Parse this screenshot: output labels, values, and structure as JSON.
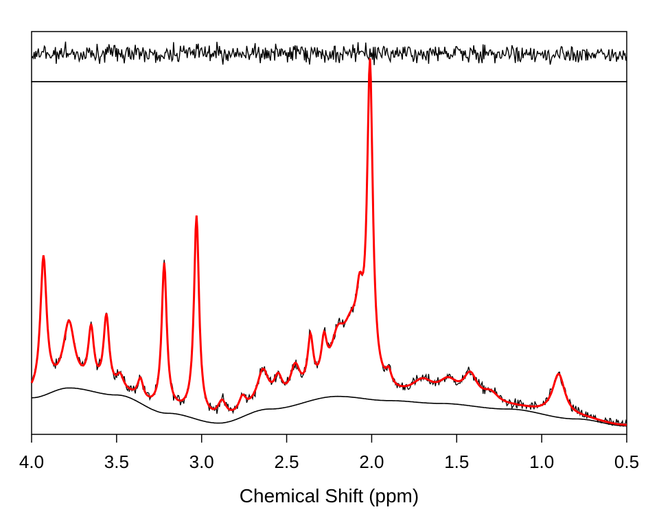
{
  "chart_data": {
    "type": "line",
    "title": "",
    "xlabel": "Chemical Shift (ppm)",
    "ylabel": "",
    "x_reversed": true,
    "xlim": [
      4.0,
      0.5
    ],
    "x_ticks": [
      "4.0",
      "3.5",
      "3.0",
      "2.5",
      "2.0",
      "1.5",
      "1.0",
      "0.5"
    ],
    "grid": false,
    "legend": "none",
    "panels": [
      {
        "name": "residual",
        "description_values": "noise trace around zero"
      },
      {
        "name": "spectrum",
        "series": [
          "data",
          "fit",
          "baseline"
        ]
      }
    ],
    "colors": {
      "data": "#000000",
      "fit": "#ff0000",
      "baseline": "#000000",
      "residual": "#000000"
    },
    "fit_model": {
      "x_range": [
        0.5,
        4.0
      ],
      "baseline_points": [
        [
          4.0,
          0.13
        ],
        [
          3.78,
          0.165
        ],
        [
          3.5,
          0.14
        ],
        [
          3.2,
          0.075
        ],
        [
          2.9,
          0.04
        ],
        [
          2.6,
          0.09
        ],
        [
          2.2,
          0.135
        ],
        [
          1.9,
          0.12
        ],
        [
          1.6,
          0.11
        ],
        [
          1.2,
          0.09
        ],
        [
          0.8,
          0.055
        ],
        [
          0.5,
          0.03
        ]
      ],
      "peaks": [
        {
          "ppm": 3.93,
          "height": 0.48,
          "width": 0.022
        },
        {
          "ppm": 3.78,
          "height": 0.22,
          "width": 0.04
        },
        {
          "ppm": 3.65,
          "height": 0.2,
          "width": 0.02
        },
        {
          "ppm": 3.56,
          "height": 0.26,
          "width": 0.02
        },
        {
          "ppm": 3.48,
          "height": 0.05,
          "width": 0.025
        },
        {
          "ppm": 3.36,
          "height": 0.07,
          "width": 0.02
        },
        {
          "ppm": 3.22,
          "height": 0.52,
          "width": 0.018
        },
        {
          "ppm": 3.03,
          "height": 0.71,
          "width": 0.018
        },
        {
          "ppm": 2.88,
          "height": 0.06,
          "width": 0.03
        },
        {
          "ppm": 2.76,
          "height": 0.05,
          "width": 0.025
        },
        {
          "ppm": 2.64,
          "height": 0.12,
          "width": 0.04
        },
        {
          "ppm": 2.55,
          "height": 0.08,
          "width": 0.03
        },
        {
          "ppm": 2.45,
          "height": 0.11,
          "width": 0.035
        },
        {
          "ppm": 2.36,
          "height": 0.18,
          "width": 0.02
        },
        {
          "ppm": 2.28,
          "height": 0.14,
          "width": 0.02
        },
        {
          "ppm": 2.2,
          "height": 0.15,
          "width": 0.05
        },
        {
          "ppm": 2.12,
          "height": 0.18,
          "width": 0.06
        },
        {
          "ppm": 2.07,
          "height": 0.2,
          "width": 0.025
        },
        {
          "ppm": 2.01,
          "height": 1.12,
          "width": 0.02
        },
        {
          "ppm": 1.9,
          "height": 0.05,
          "width": 0.02
        },
        {
          "ppm": 1.7,
          "height": 0.06,
          "width": 0.08
        },
        {
          "ppm": 1.55,
          "height": 0.06,
          "width": 0.07
        },
        {
          "ppm": 1.42,
          "height": 0.09,
          "width": 0.05
        },
        {
          "ppm": 1.3,
          "height": 0.04,
          "width": 0.06
        },
        {
          "ppm": 0.9,
          "height": 0.15,
          "width": 0.045
        }
      ]
    }
  }
}
